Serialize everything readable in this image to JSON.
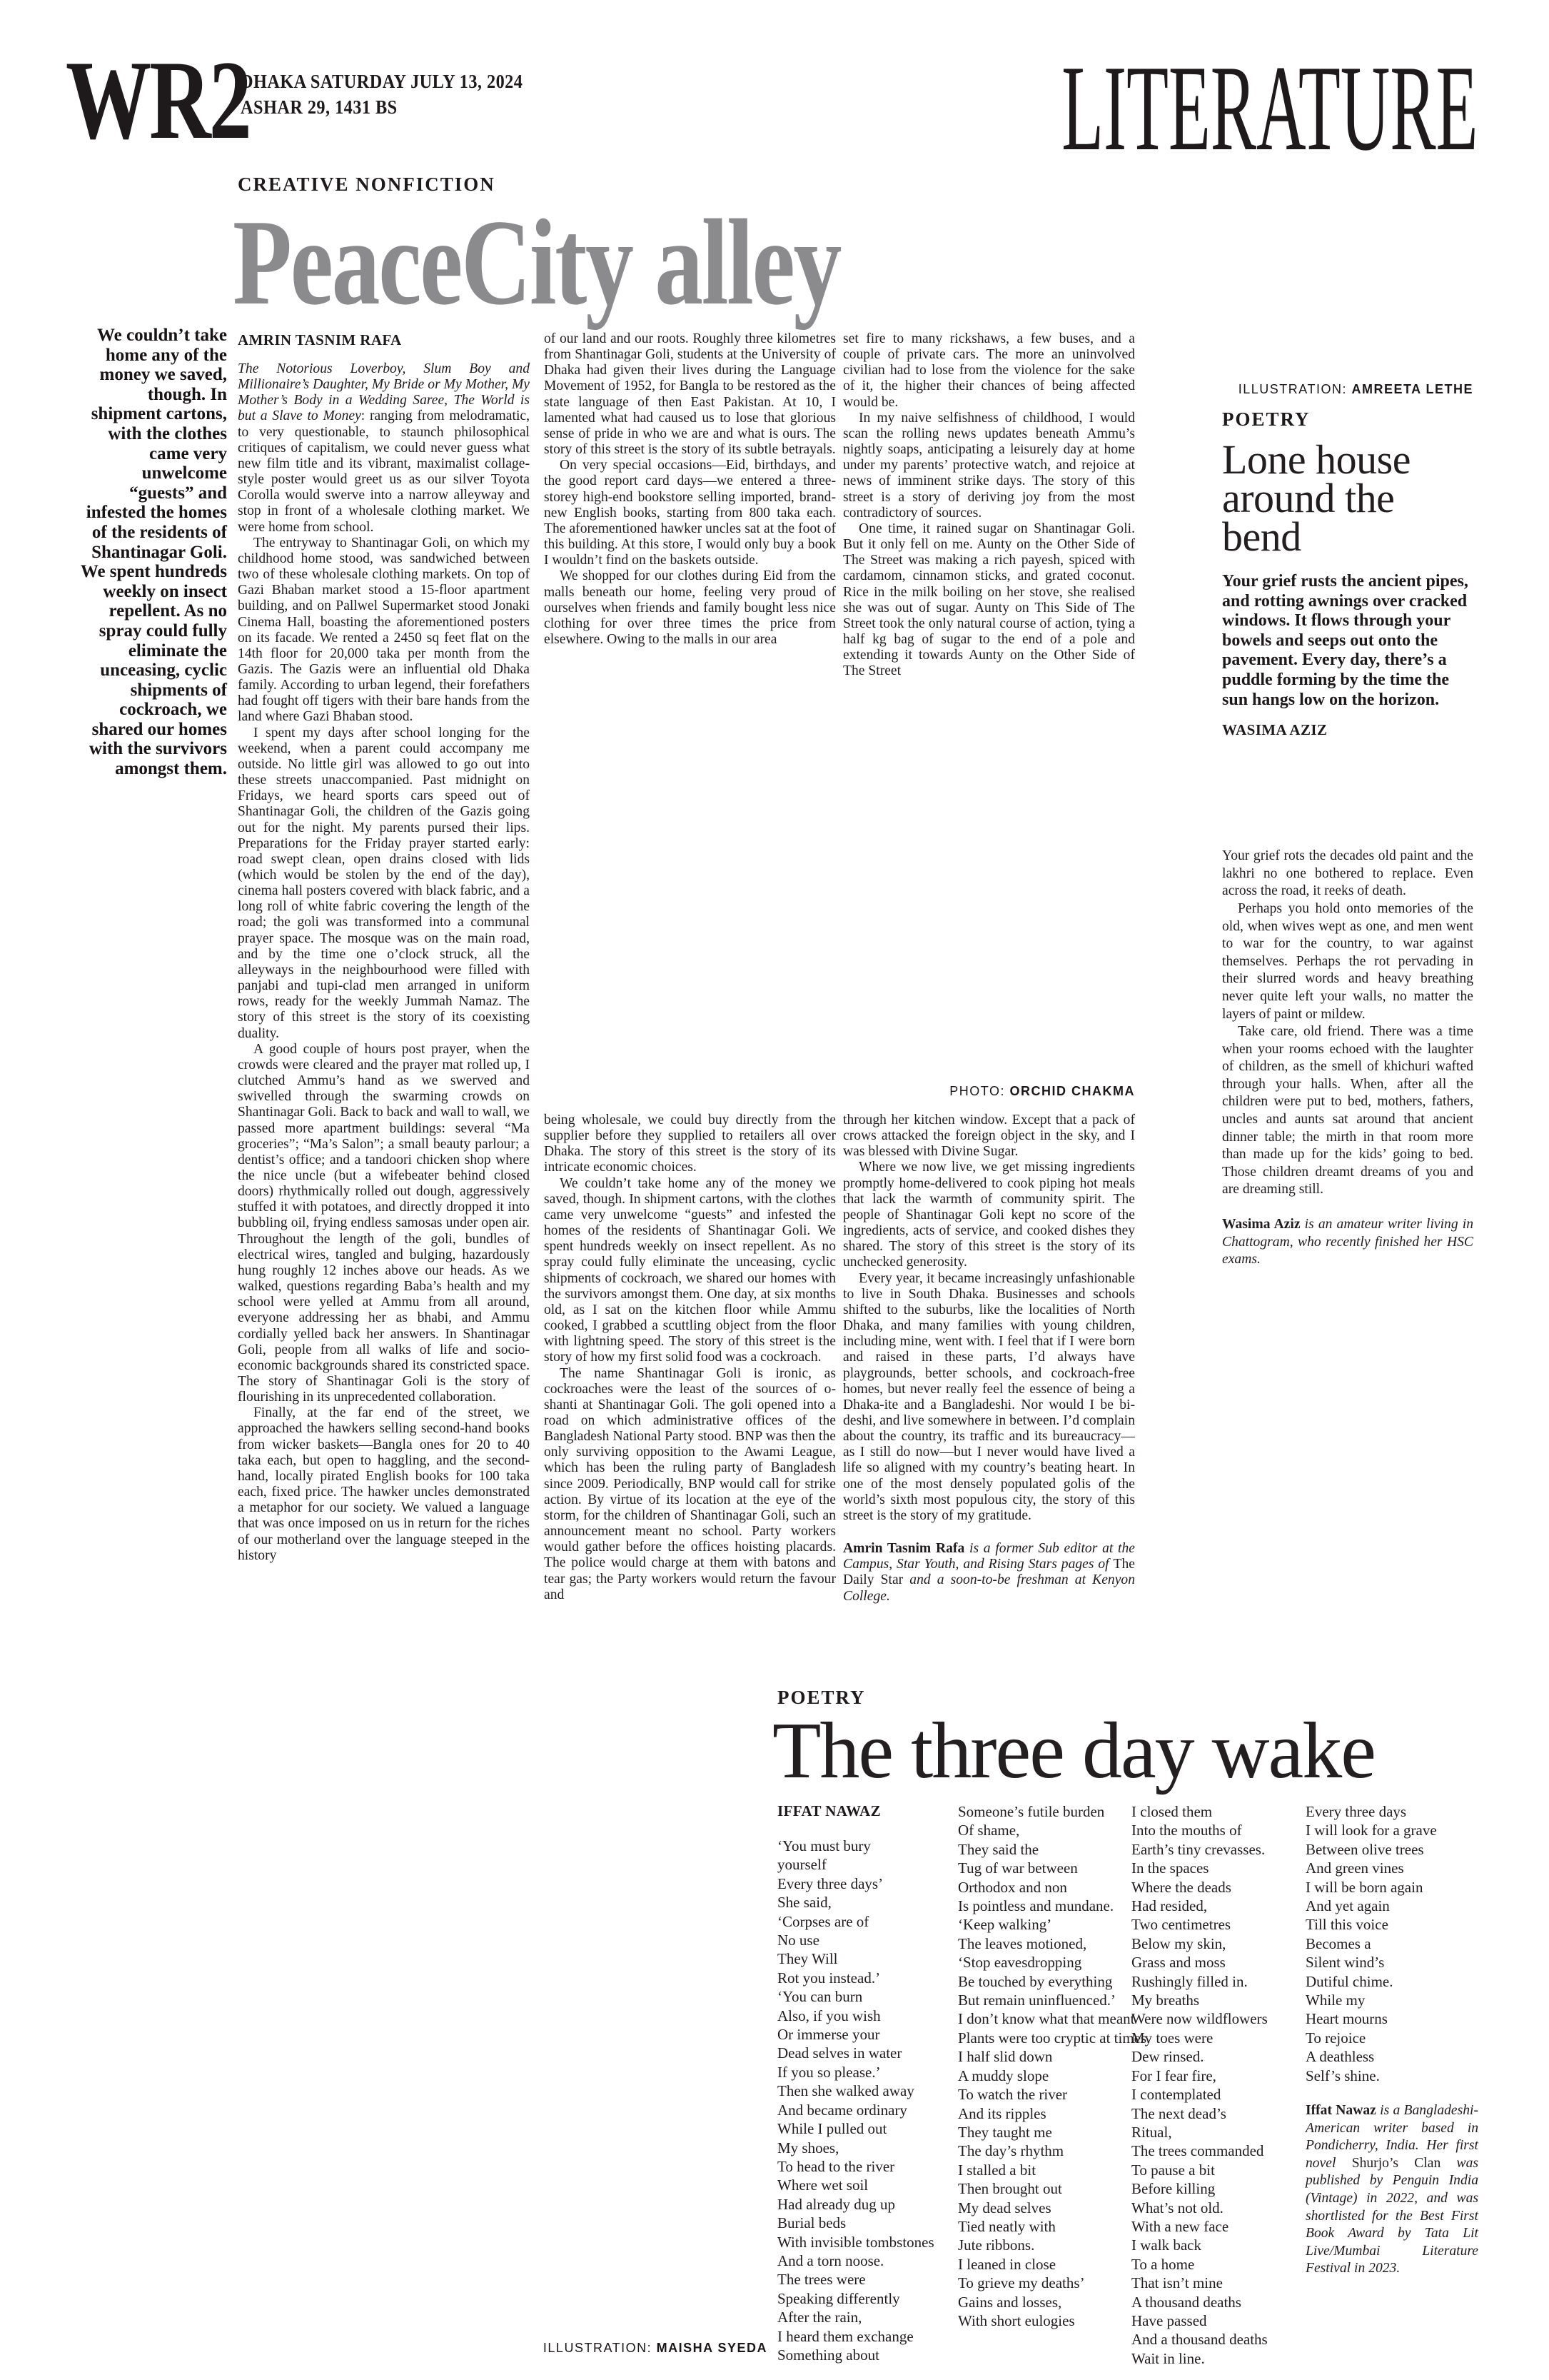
{
  "header": {
    "masthead": "WR2",
    "date_line1": "DHAKA SATURDAY JULY 13, 2024",
    "date_line2": "ASHAR 29, 1431 BS",
    "section": "LITERATURE"
  },
  "feature": {
    "kicker": "CREATIVE NONFICTION",
    "title": "PeaceCity alley",
    "byline": "AMRIN TASNIM RAFA",
    "pull_quote": "We couldn’t take home any of the money we saved, though. In shipment cartons, with the clothes came very unwelcome “guests” and infested the homes of the residents of Shantinagar Goli. We spent hundreds weekly on insect repellent. As no spray could fully eliminate the unceasing, cyclic shipments of cockroach, we shared our homes with the survivors amongst them.",
    "photo_credit_label": "PHOTO:",
    "photo_credit_name": "ORCHID CHAKMA",
    "col1": [
      {
        "indent": false,
        "runs": [
          [
            "The Notorious Loverboy, Slum Boy and Millionaire’s Daughter, My Bride or My Mother, My Mother’s Body in a Wedding Saree, The World is but a Slave to Money",
            "i"
          ],
          [
            ": ranging from melodramatic, to very questionable, to staunch philosophical critiques of capitalism, we could never guess what new film title and its vibrant, maximalist collage-style poster would greet us as our silver Toyota Corolla would swerve into a narrow alleyway and stop in front of a wholesale clothing market. We were home from school.",
            ""
          ]
        ]
      },
      {
        "indent": true,
        "runs": [
          [
            "The entryway to Shantinagar Goli, on which my childhood home stood, was sandwiched between two of these wholesale clothing markets. On top of Gazi Bhaban market stood a 15-floor apartment building, and on Pallwel Supermarket stood Jonaki Cinema Hall, boasting the aforementioned posters on its facade. We rented a 2450 sq feet flat on the 14th floor for 20,000 taka per month from the Gazis. The Gazis were an influential old Dhaka family. According to urban legend, their forefathers had fought off tigers with their bare hands from the land where Gazi Bhaban stood.",
            ""
          ]
        ]
      },
      {
        "indent": true,
        "runs": [
          [
            "I spent my days after school longing for the weekend, when a parent could accompany me outside. No little girl was allowed to go out into these streets unaccompanied. Past midnight on Fridays, we heard sports cars speed out of Shantinagar Goli, the children of the Gazis going out for the night. My parents pursed their lips. Preparations for the Friday prayer started early: road swept clean, open drains closed with lids (which would be stolen by the end of the day), cinema hall posters covered with black fabric, and a long roll of white fabric covering the length of the road; the goli was transformed into a communal prayer space. The mosque was on the main road, and by the time one o’clock struck, all the alleyways in the neighbourhood were filled with panjabi and tupi-clad men arranged in uniform rows, ready for the weekly Jummah Namaz. The story of this street is the story of its coexisting duality.",
            ""
          ]
        ]
      },
      {
        "indent": true,
        "runs": [
          [
            "A good couple of hours post prayer, when the crowds were cleared and the prayer mat rolled up, I clutched Ammu’s hand as we swerved and swivelled through the swarming crowds on Shantinagar Goli. Back to back and wall to wall, we passed more apartment buildings: several “Ma groceries”; “Ma’s Salon”; a small beauty parlour; a dentist’s office; and a tandoori chicken shop where the nice uncle (but a wifebeater behind closed doors) rhythmically rolled out dough, aggressively stuffed it with potatoes, and directly dropped it into bubbling oil, frying endless samosas under open air. Throughout the length of the goli, bundles of electrical wires, tangled and bulging, hazardously hung roughly 12 inches above our heads. As we walked, questions regarding Baba’s health and my school were yelled at Ammu from all around, everyone addressing her as bhabi, and Ammu cordially yelled back her answers. In Shantinagar Goli, people from all walks of life and socio-economic backgrounds shared its constricted space. The story of Shantinagar Goli is the story of flourishing in its unprecedented collaboration.",
            ""
          ]
        ]
      },
      {
        "indent": true,
        "runs": [
          [
            "Finally, at the far end of the street, we approached the hawkers selling second-hand books from wicker baskets—Bangla ones for 20 to 40 taka each, but open to haggling, and the second-hand, locally pirated English books for 100 taka each, fixed price. The hawker uncles demonstrated a metaphor for our society. We valued a language that was once imposed on us in return for the riches of our motherland over the language steeped in the history",
            ""
          ]
        ]
      }
    ],
    "col2_top": [
      {
        "indent": false,
        "runs": [
          [
            "of our land and our roots. Roughly three kilometres from Shantinagar Goli, students at the University of Dhaka had given their lives during the Language Movement of 1952, for Bangla to be restored as the state language of then East Pakistan. At 10, I lamented what had caused us to lose that glorious sense of pride in who we are and what is ours. The story of this street is the story of its subtle betrayals.",
            ""
          ]
        ]
      },
      {
        "indent": true,
        "runs": [
          [
            "On very special occasions—Eid, birthdays, and the good report card days—we entered a three-storey high-end bookstore selling imported, brand-new English books, starting from 800 taka each. The aforementioned hawker uncles sat at the foot of this building. At this store, I would only buy a book I wouldn’t find on the baskets outside.",
            ""
          ]
        ]
      },
      {
        "indent": true,
        "runs": [
          [
            "We shopped for our clothes during Eid from the malls beneath our home, feeling very proud of ourselves when friends and family bought less nice clothing for over three times the price from elsewhere. Owing to the malls in our area",
            ""
          ]
        ]
      }
    ],
    "col2_bottom": [
      {
        "indent": false,
        "runs": [
          [
            "being wholesale, we could buy directly from the supplier before they supplied to retailers all over Dhaka. The story of this street is the story of its intricate economic choices.",
            ""
          ]
        ]
      },
      {
        "indent": true,
        "runs": [
          [
            "We couldn’t take home any of the money we saved, though. In shipment cartons, with the clothes came very unwelcome “guests” and infested the homes of the residents of Shantinagar Goli. We spent hundreds weekly on insect repellent. As no spray could fully eliminate the unceasing, cyclic shipments of cockroach, we shared our homes with the survivors amongst them. One day, at six months old, as I sat on the kitchen floor while Ammu cooked, I grabbed a scuttling object from the floor with lightning speed. The story of this street is the story of how my first solid food was a cockroach.",
            ""
          ]
        ]
      },
      {
        "indent": true,
        "runs": [
          [
            "The name Shantinagar Goli is ironic, as cockroaches were the least of the sources of o-shanti at Shantinagar Goli. The goli opened into a road on which administrative offices of the Bangladesh National Party stood. BNP was then the only surviving opposition to the Awami League, which has been the ruling party of Bangladesh since 2009. Periodically, BNP would call for strike action. By virtue of its location at the eye of the storm, for the children of Shantinagar Goli, such an announcement meant no school. Party workers would gather before the offices hoisting placards. The police would charge at them with batons and tear gas; the Party workers would return the favour and",
            ""
          ]
        ]
      }
    ],
    "col3_top": [
      {
        "indent": false,
        "runs": [
          [
            "set fire to many rickshaws, a few buses, and a couple of private cars. The more an uninvolved civilian had to lose from the violence for the sake of it, the higher their chances of being affected would be.",
            ""
          ]
        ]
      },
      {
        "indent": true,
        "runs": [
          [
            "In my naive selfishness of childhood, I would scan the rolling news updates beneath Ammu’s nightly soaps, anticipating a leisurely day at home under my parents’ protective watch, and rejoice at news of imminent strike days. The story of this street is a story of deriving joy from the most contradictory of sources.",
            ""
          ]
        ]
      },
      {
        "indent": true,
        "runs": [
          [
            "One time, it rained sugar on Shantinagar Goli. But it only fell on me. Aunty on the Other Side of The Street was making a rich payesh, spiced with cardamom, cinnamon sticks, and grated coconut. Rice in the milk boiling on her stove, she realised she was out of sugar. Aunty on This Side of The Street took the only natural course of action, tying a half kg bag of sugar to the end of a pole and extending it towards Aunty on the Other Side of The Street",
            ""
          ]
        ]
      }
    ],
    "col3_bottom": [
      {
        "indent": false,
        "runs": [
          [
            "through her kitchen window. Except that a pack of crows attacked the foreign object in the sky, and I was blessed with Divine Sugar.",
            ""
          ]
        ]
      },
      {
        "indent": true,
        "runs": [
          [
            "Where we now live, we get missing ingredients promptly home-delivered to cook piping hot meals that lack the warmth of community spirit. The people of Shantinagar Goli kept no score of the ingredients, acts of service, and cooked dishes they shared. The story of this street is the story of its unchecked generosity.",
            ""
          ]
        ]
      },
      {
        "indent": true,
        "runs": [
          [
            "Every year, it became increasingly unfashionable to live in South Dhaka. Businesses and schools shifted to the suburbs, like the localities of North Dhaka, and many families with young children, including mine, went with. I feel that if I were born and raised in these parts, I’d always have playgrounds, better schools, and cockroach-free homes, but never really feel the essence of being a Dhaka-ite and a Bangladeshi. Nor would I be bi-deshi, and live somewhere in between. I’d complain about the country, its traffic and its bureaucracy—as I still do now—but I never would have lived a life so aligned with my country’s beating heart. In one of the most densely populated golis of the world’s sixth most populous city, the story of this street is the story of my gratitude.",
            ""
          ]
        ]
      }
    ],
    "author_bio": [
      {
        "indent": false,
        "runs": [
          [
            "Amrin Tasnim Rafa",
            "b"
          ],
          [
            " is a former Sub editor at the Campus, Star Youth, and Rising Stars pages of ",
            "i"
          ],
          [
            "The Daily Star",
            ""
          ],
          [
            " and a soon-to-be freshman at Kenyon College.",
            "i"
          ]
        ]
      }
    ]
  },
  "poetry1": {
    "illustration_credit_label": "ILLUSTRATION:",
    "illustration_credit_name": "AMREETA LETHE",
    "kicker": "POETRY",
    "title": "Lone house around the bend",
    "intro": "Your grief rusts the ancient pipes, and rotting awnings over cracked windows. It flows through your bowels and seeps out onto the pavement. Every day, there’s a puddle forming by the time the sun hangs low on the horizon.",
    "byline": "WASIMA AZIZ",
    "body": [
      {
        "indent": false,
        "runs": [
          [
            "Your grief rots the decades old paint and the lakhri no one bothered to replace. Even across the road, it reeks of death.",
            ""
          ]
        ]
      },
      {
        "indent": true,
        "runs": [
          [
            "Perhaps you hold onto memories of the old, when wives wept as one, and men went to war for the country, to war against themselves. Perhaps the rot pervading in their slurred words and heavy breathing never quite left your walls, no matter the layers of paint or mildew.",
            ""
          ]
        ]
      },
      {
        "indent": true,
        "runs": [
          [
            "Take care, old friend. There was a time when your rooms echoed with the laughter of children, as the smell of khichuri wafted through your halls. When, after all the children were put to bed, mothers, fathers, uncles and aunts sat around that ancient dinner table; the mirth in that room more than made up for the kids’ going to bed. Those children dreamt dreams of you and are dreaming still.",
            ""
          ]
        ]
      }
    ],
    "bio": [
      {
        "indent": false,
        "runs": [
          [
            "Wasima Aziz",
            "b"
          ],
          [
            " is an amateur writer living in Chattogram, who recently finished her HSC exams.",
            "i"
          ]
        ]
      }
    ]
  },
  "poetry2": {
    "kicker": "POETRY",
    "title": "The three day wake",
    "byline": "IFFAT NAWAZ",
    "illustration_credit_label": "ILLUSTRATION:",
    "illustration_credit_name": "MAISHA SYEDA",
    "col1": [
      "‘You must bury",
      "yourself",
      "Every three days’",
      "She said,",
      "‘Corpses are of",
      "No use",
      "They Will",
      "Rot you instead.’",
      "‘You can burn",
      "Also, if you wish",
      "Or immerse your",
      "Dead selves in water",
      "If you so please.’",
      "Then she walked away",
      "And became ordinary",
      "While I pulled out",
      "My shoes,",
      "To head to the river",
      "Where wet soil",
      "Had already dug up",
      "Burial beds",
      "With invisible tombstones",
      "And a torn noose.",
      "The trees were",
      "Speaking differently",
      "After the rain,",
      "I heard them exchange",
      "Something about"
    ],
    "col2": [
      "Someone’s futile burden",
      "Of shame,",
      "They said the",
      "Tug of war between",
      "Orthodox and non",
      "Is pointless and mundane.",
      "‘Keep walking’",
      "The leaves motioned,",
      "‘Stop eavesdropping",
      "Be touched by everything",
      "But remain uninfluenced.’",
      "I don’t know what that meant",
      "Plants were too cryptic at times.",
      "I half slid down",
      "A muddy slope",
      "To watch the river",
      "And its ripples",
      "They taught me",
      "The day’s rhythm",
      "I stalled a bit",
      "Then brought out",
      "My dead selves",
      "Tied neatly with",
      "Jute ribbons.",
      "I leaned in close",
      "To grieve my deaths’",
      "Gains and losses,",
      "With short eulogies"
    ],
    "col3": [
      "I closed them",
      "Into the mouths of",
      "Earth’s tiny crevasses.",
      "In the spaces",
      "Where the deads",
      "Had resided,",
      "Two centimetres",
      "Below my skin,",
      "Grass and moss",
      "Rushingly filled in.",
      "My breaths",
      "Were now wildflowers",
      "My toes were",
      "Dew rinsed.",
      "For I fear fire,",
      "I contemplated",
      "The next dead’s",
      "Ritual,",
      "The trees commanded",
      "To pause a bit",
      "Before killing",
      "What’s not old.",
      "With a new face",
      "I walk back",
      "To a home",
      "That isn’t mine",
      "A thousand deaths",
      "Have passed",
      "And a thousand deaths",
      "Wait in line."
    ],
    "col4": [
      "Every three days",
      "I will look for a grave",
      "Between olive trees",
      "And green vines",
      "I will be born again",
      "And yet again",
      "Till this voice",
      "Becomes a",
      "Silent wind’s",
      "Dutiful chime.",
      "While my",
      "Heart mourns",
      "To rejoice",
      "A deathless",
      "Self’s shine."
    ],
    "bio": [
      {
        "indent": false,
        "runs": [
          [
            "Iffat Nawaz",
            "b"
          ],
          [
            " is a Bangladeshi-American writer based in Pondicherry, India. Her first novel ",
            "i"
          ],
          [
            "Shurjo’s Clan",
            ""
          ],
          [
            " was published by Penguin India (Vintage) in 2022, and was shortlisted for the Best First Book Award by Tata Lit Live/Mumbai Literature Festival in 2023.",
            "i"
          ]
        ]
      }
    ]
  }
}
